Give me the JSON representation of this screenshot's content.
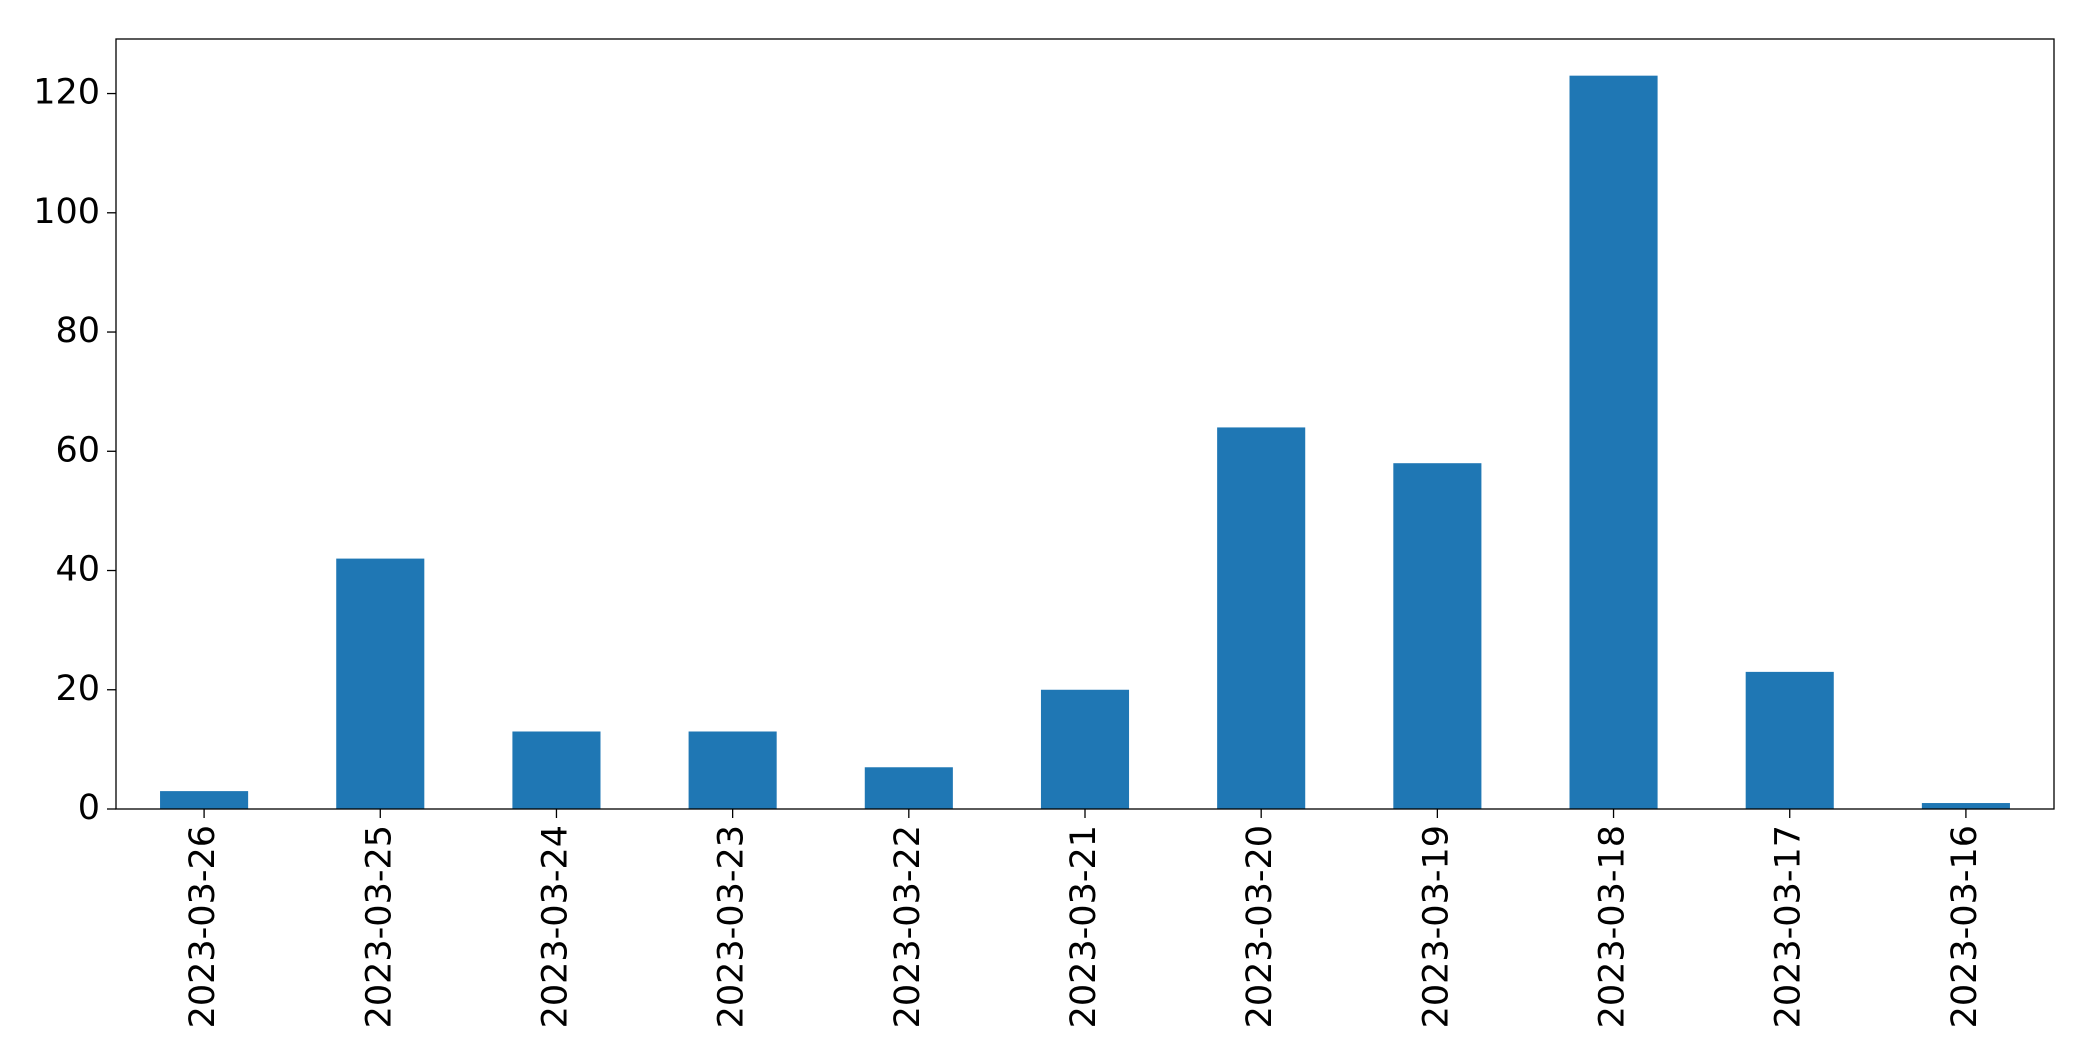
{
  "chart_data": {
    "type": "bar",
    "categories": [
      "2023-03-26",
      "2023-03-25",
      "2023-03-24",
      "2023-03-23",
      "2023-03-22",
      "2023-03-21",
      "2023-03-20",
      "2023-03-19",
      "2023-03-18",
      "2023-03-17",
      "2023-03-16"
    ],
    "values": [
      3,
      42,
      13,
      13,
      7,
      20,
      64,
      58,
      123,
      23,
      1
    ],
    "color": "#1f77b4",
    "ylim": [
      0,
      129.15
    ],
    "yticks": [
      0,
      20,
      40,
      60,
      80,
      100,
      120
    ],
    "grid": false
  }
}
